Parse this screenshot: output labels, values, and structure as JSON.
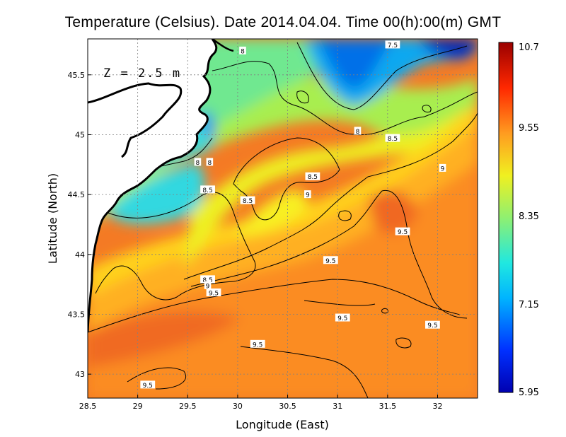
{
  "title": "Temperature (Celsius). Date 2014.04.04. Time 00(h):00(m) GMT",
  "depth_label": "Z = 2.5 m",
  "colors": {
    "land": "#ffffff",
    "coast": "#000000"
  },
  "chart_data": {
    "type": "heatmap",
    "variable": "Temperature (Celsius)",
    "xlabel": "Longitude (East)",
    "ylabel": "Latitude (North)",
    "xlim": [
      28.5,
      32.4
    ],
    "ylim": [
      42.8,
      45.8
    ],
    "xticks": [
      28.5,
      29,
      29.5,
      30,
      30.5,
      31,
      31.5,
      32
    ],
    "xtick_labels": [
      "28.5",
      "29",
      "29.5",
      "30",
      "30.5",
      "31",
      "31.5",
      "32"
    ],
    "yticks": [
      43,
      43.5,
      44,
      44.5,
      45,
      45.5
    ],
    "ytick_labels": [
      "43",
      "43.5",
      "44",
      "44.5",
      "45",
      "45.5"
    ],
    "grid": true,
    "colorbar": {
      "min": 5.95,
      "max": 10.7,
      "tick_labels": [
        "10.7",
        "9.55",
        "8.35",
        "7.15",
        "5.95"
      ],
      "tick_values": [
        10.7,
        9.55,
        8.35,
        7.15,
        5.95
      ]
    },
    "contour_labels": [
      {
        "text": "8",
        "lon": 30.05,
        "lat": 45.7
      },
      {
        "text": "7.5",
        "lon": 31.55,
        "lat": 45.75
      },
      {
        "text": "8",
        "lon": 31.2,
        "lat": 45.03
      },
      {
        "text": "8.5",
        "lon": 31.55,
        "lat": 44.97
      },
      {
        "text": "9",
        "lon": 32.05,
        "lat": 44.72
      },
      {
        "text": "8",
        "lon": 29.6,
        "lat": 44.77
      },
      {
        "text": "8",
        "lon": 29.72,
        "lat": 44.77
      },
      {
        "text": "8.5",
        "lon": 29.7,
        "lat": 44.54
      },
      {
        "text": "8.5",
        "lon": 30.1,
        "lat": 44.45
      },
      {
        "text": "8.5",
        "lon": 30.75,
        "lat": 44.65
      },
      {
        "text": "9",
        "lon": 30.7,
        "lat": 44.5
      },
      {
        "text": "9.5",
        "lon": 31.65,
        "lat": 44.19
      },
      {
        "text": "9.5",
        "lon": 30.93,
        "lat": 43.95
      },
      {
        "text": "8.5",
        "lon": 29.7,
        "lat": 43.79
      },
      {
        "text": "9",
        "lon": 29.7,
        "lat": 43.74
      },
      {
        "text": "9.5",
        "lon": 29.76,
        "lat": 43.68
      },
      {
        "text": "9.5",
        "lon": 31.05,
        "lat": 43.47
      },
      {
        "text": "9.5",
        "lon": 31.95,
        "lat": 43.41
      },
      {
        "text": "9.5",
        "lon": 30.2,
        "lat": 43.25
      },
      {
        "text": "9.5",
        "lon": 29.1,
        "lat": 42.91
      }
    ]
  }
}
